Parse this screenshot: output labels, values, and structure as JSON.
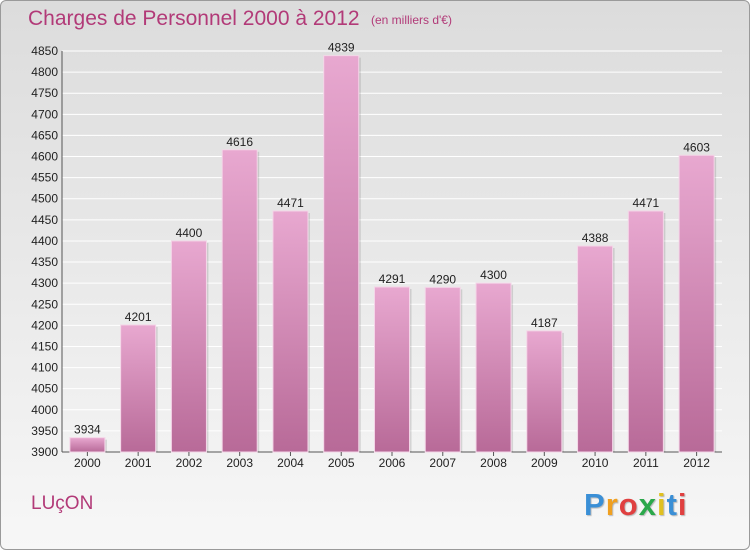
{
  "title": "Charges de Personnel 2000 à 2012",
  "subtitle": "(en milliers d'€)",
  "commune": "LUçON",
  "logo": {
    "letters": [
      "P",
      "r",
      "o",
      "x",
      "i",
      "t",
      "i"
    ],
    "colors": [
      "#3a8fd6",
      "#f0a020",
      "#e04040",
      "#2aa84a",
      "#e0c020",
      "#3a8fd6",
      "#e04040"
    ]
  },
  "colors": {
    "bar_top": "#e8a8d0",
    "bar_bottom": "#b86a98",
    "text_accent": "#b23a78"
  },
  "chart_data": {
    "type": "bar",
    "title": "Charges de Personnel 2000 à 2012",
    "subtitle": "(en milliers d'€)",
    "categories": [
      "2000",
      "2001",
      "2002",
      "2003",
      "2004",
      "2005",
      "2006",
      "2007",
      "2008",
      "2009",
      "2010",
      "2011",
      "2012"
    ],
    "values": [
      3934,
      4201,
      4400,
      4616,
      4471,
      4839,
      4291,
      4290,
      4300,
      4187,
      4388,
      4471,
      4603
    ],
    "ylim": [
      3900,
      4850
    ],
    "yticks": [
      3900,
      3950,
      4000,
      4050,
      4100,
      4150,
      4200,
      4250,
      4300,
      4350,
      4400,
      4450,
      4500,
      4550,
      4600,
      4650,
      4700,
      4750,
      4800,
      4850
    ],
    "grid": true,
    "xlabel": "",
    "ylabel": ""
  }
}
